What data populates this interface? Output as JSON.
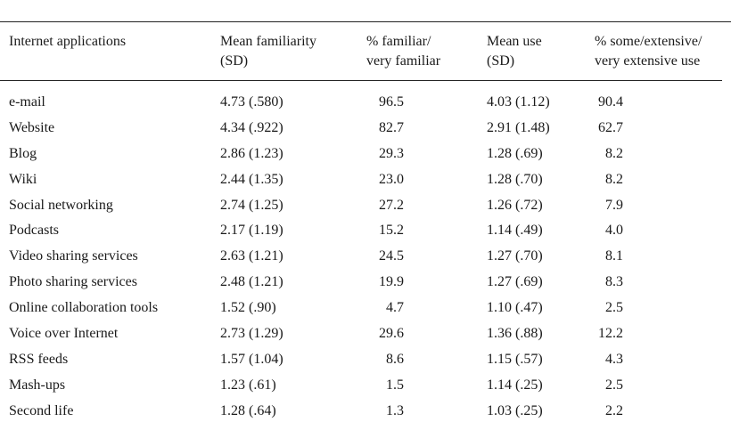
{
  "headers": {
    "app": "Internet applications",
    "mean_familiarity": [
      "Mean familiarity",
      "(SD)"
    ],
    "pct_familiar": [
      "% familiar/",
      "very familiar"
    ],
    "mean_use": [
      "Mean use",
      "(SD)"
    ],
    "pct_use": [
      "% some/extensive/",
      "very extensive use"
    ]
  },
  "rows": [
    {
      "app": "e-mail",
      "mean_fam": "4.73 (.580)",
      "pct_fam": "96.5",
      "mean_use": "4.03 (1.12)",
      "pct_use": "90.4"
    },
    {
      "app": "Website",
      "mean_fam": "4.34 (.922)",
      "pct_fam": "82.7",
      "mean_use": "2.91 (1.48)",
      "pct_use": "62.7"
    },
    {
      "app": "Blog",
      "mean_fam": "2.86 (1.23)",
      "pct_fam": "29.3",
      "mean_use": "1.28 (.69)",
      "pct_use": "8.2"
    },
    {
      "app": "Wiki",
      "mean_fam": "2.44 (1.35)",
      "pct_fam": "23.0",
      "mean_use": "1.28 (.70)",
      "pct_use": "8.2"
    },
    {
      "app": "Social networking",
      "mean_fam": "2.74 (1.25)",
      "pct_fam": "27.2",
      "mean_use": "1.26 (.72)",
      "pct_use": "7.9"
    },
    {
      "app": "Podcasts",
      "mean_fam": "2.17 (1.19)",
      "pct_fam": "15.2",
      "mean_use": "1.14 (.49)",
      "pct_use": "4.0"
    },
    {
      "app": "Video sharing services",
      "mean_fam": "2.63 (1.21)",
      "pct_fam": "24.5",
      "mean_use": "1.27 (.70)",
      "pct_use": "8.1"
    },
    {
      "app": "Photo sharing services",
      "mean_fam": "2.48 (1.21)",
      "pct_fam": "19.9",
      "mean_use": "1.27 (.69)",
      "pct_use": "8.3"
    },
    {
      "app": "Online collaboration tools",
      "mean_fam": "1.52 (.90)",
      "pct_fam": "4.7",
      "mean_use": "1.10 (.47)",
      "pct_use": "2.5"
    },
    {
      "app": "Voice over Internet",
      "mean_fam": "2.73 (1.29)",
      "pct_fam": "29.6",
      "mean_use": "1.36 (.88)",
      "pct_use": "12.2"
    },
    {
      "app": "RSS feeds",
      "mean_fam": "1.57 (1.04)",
      "pct_fam": "8.6",
      "mean_use": "1.15 (.57)",
      "pct_use": "4.3"
    },
    {
      "app": "Mash-ups",
      "mean_fam": "1.23 (.61)",
      "pct_fam": "1.5",
      "mean_use": "1.14 (.25)",
      "pct_use": "2.5"
    },
    {
      "app": "Second life",
      "mean_fam": "1.28 (.64)",
      "pct_fam": "1.3",
      "mean_use": "1.03 (.25)",
      "pct_use": "2.2"
    }
  ]
}
